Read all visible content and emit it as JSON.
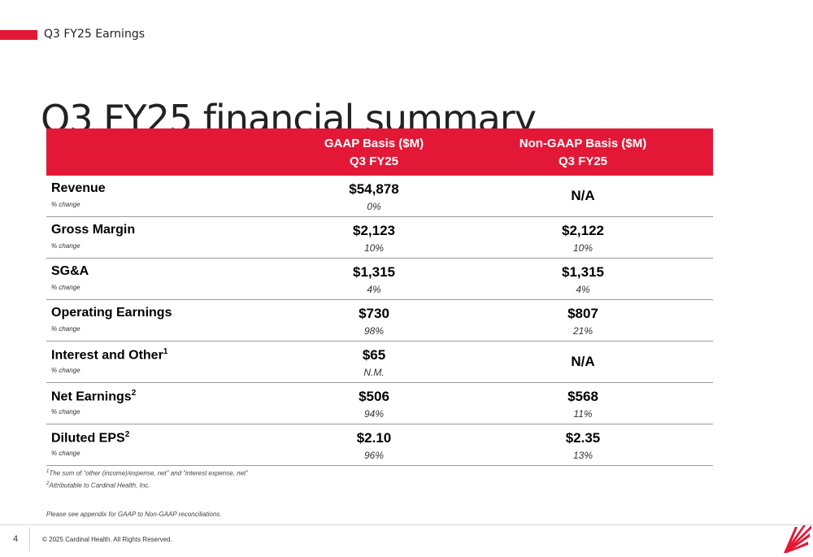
{
  "header": {
    "tag": "Q3 FY25 Earnings",
    "title": "Q3 FY25 financial summary"
  },
  "table": {
    "columns": [
      {
        "line1": "GAAP Basis ($M)",
        "line2": "Q3 FY25"
      },
      {
        "line1": "Non-GAAP Basis ($M)",
        "line2": "Q3 FY25"
      }
    ],
    "change_label": "% change",
    "rows": [
      {
        "label": "Revenue",
        "sup": "",
        "gaap": "$54,878",
        "gaap_pct": "0%",
        "nongaap": "N/A",
        "nongaap_pct": ""
      },
      {
        "label": "Gross Margin",
        "sup": "",
        "gaap": "$2,123",
        "gaap_pct": "10%",
        "nongaap": "$2,122",
        "nongaap_pct": "10%"
      },
      {
        "label": "SG&A",
        "sup": "",
        "gaap": "$1,315",
        "gaap_pct": "4%",
        "nongaap": "$1,315",
        "nongaap_pct": "4%"
      },
      {
        "label": "Operating Earnings",
        "sup": "",
        "gaap": "$730",
        "gaap_pct": "98%",
        "nongaap": "$807",
        "nongaap_pct": "21%"
      },
      {
        "label": "Interest and Other",
        "sup": "1",
        "gaap": "$65",
        "gaap_pct": "N.M.",
        "nongaap": "N/A",
        "nongaap_pct": ""
      },
      {
        "label": "Net Earnings",
        "sup": "2",
        "gaap": "$506",
        "gaap_pct": "94%",
        "nongaap": "$568",
        "nongaap_pct": "11%"
      },
      {
        "label": "Diluted EPS",
        "sup": "2",
        "gaap": "$2.10",
        "gaap_pct": "96%",
        "nongaap": "$2.35",
        "nongaap_pct": "13%"
      }
    ]
  },
  "footnotes": {
    "fn1_sup": "1",
    "fn1": "The sum of “other (income)/expense, net” and “interest expense, net”",
    "fn2_sup": "2",
    "fn2": "Attributable to Cardinal Health, Inc.",
    "appendix": "Please see appendix for GAAP to Non-GAAP reconciliations."
  },
  "footer": {
    "page": "4",
    "copyright": "© 2025 Cardinal Health. All Rights Reserved."
  },
  "colors": {
    "accent": "#e21836"
  }
}
